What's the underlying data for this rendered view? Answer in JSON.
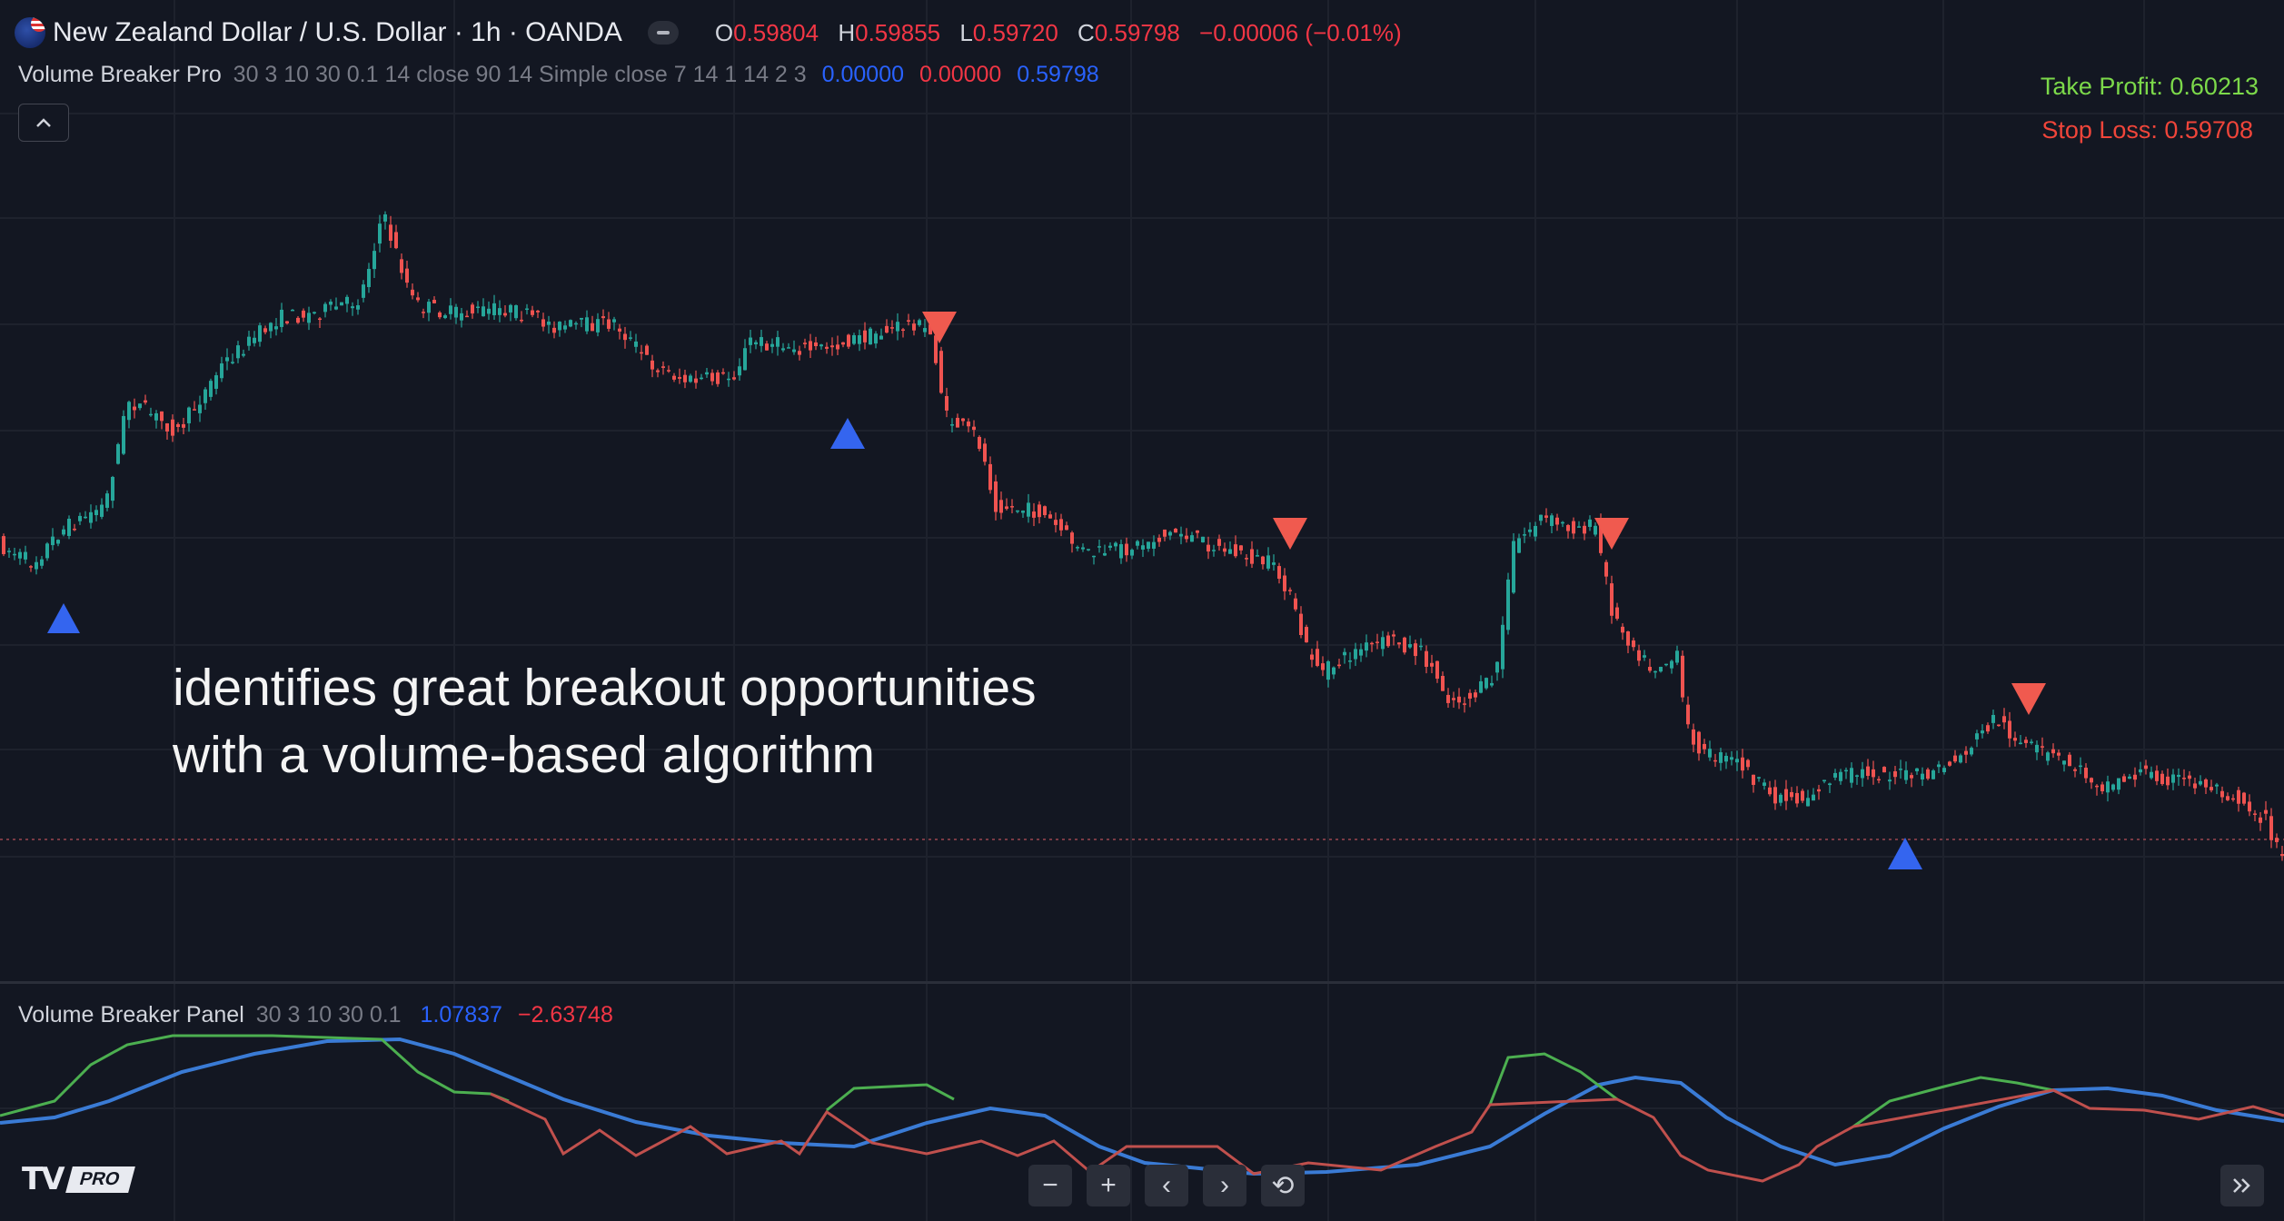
{
  "header": {
    "symbol_title": "New Zealand Dollar / U.S. Dollar · 1h · OANDA",
    "ohlc": {
      "o_label": "O",
      "o_value": "0.59804",
      "h_label": "H",
      "h_value": "0.59855",
      "l_label": "L",
      "l_value": "0.59720",
      "c_label": "C",
      "c_value": "0.59798",
      "change": "−0.00006 (−0.01%)"
    }
  },
  "indicator": {
    "name": "Volume Breaker Pro",
    "params": "30 3 10 30 0.1 14 close 90 14 Simple close 7 14 1 14 2 3",
    "value1": "0.00000",
    "value2": "0.00000",
    "value3": "0.59798"
  },
  "levels": {
    "take_profit": "Take Profit: 0.60213",
    "stop_loss": "Stop Loss: 0.59708"
  },
  "overlay_text": {
    "line1": "identifies great breakout opportunities",
    "line2": "with a volume-based algorithm"
  },
  "panel": {
    "name": "Volume Breaker Panel",
    "params": "30 3 10 30 0.1",
    "value1": "1.07837",
    "value2": "−2.63748"
  },
  "branding": {
    "pro": "PRO",
    "tv": "TV"
  },
  "colors": {
    "up": "#26a69a",
    "down": "#ef5350",
    "buy_signal": "#2962ff",
    "sell_signal": "#f05050",
    "blue_line": "#3a7bd5",
    "green_line": "#4caf50"
  },
  "controls": {
    "zoom_out": "−",
    "zoom_in": "+",
    "scroll_left": "‹",
    "scroll_right": "›",
    "reset": "⟲"
  }
}
